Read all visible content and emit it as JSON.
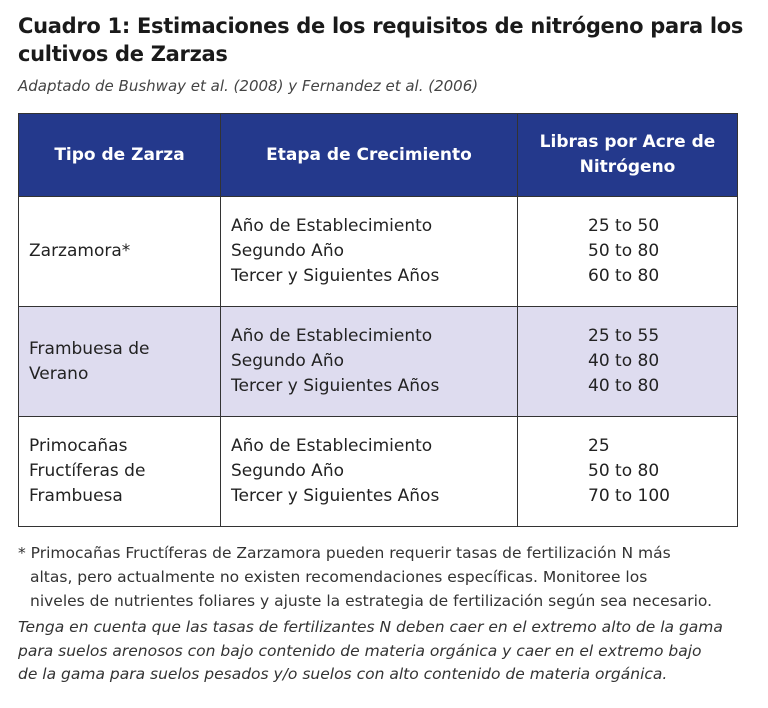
{
  "title": [
    "Cuadro 1: Estimaciones de los requisitos de nitrógeno para los",
    "cultivos de Zarzas"
  ],
  "subtitle": "Adaptado de Bushway et al. (2008) y Fernandez et al. (2006)",
  "table": {
    "header": [
      [
        "Tipo de Zarza"
      ],
      [
        "Etapa de Crecimiento"
      ],
      [
        "Libras por Acre de",
        "Nitrógeno"
      ]
    ],
    "rows": [
      [
        [
          "Zarzamora*"
        ],
        [
          "Año de Establecimiento",
          "Segundo Año",
          "Tercer y Siguientes Años"
        ],
        [
          "25 to 50",
          "50 to 80",
          "60 to 80"
        ]
      ],
      [
        [
          "Frambuesa de",
          "Verano"
        ],
        [
          "Año de Establecimiento",
          "Segundo Año",
          "Tercer y Siguientes Años"
        ],
        [
          "25 to 55",
          "40 to 80",
          "40 to 80"
        ]
      ],
      [
        [
          "Primocañas",
          "Fructíferas de",
          "Frambuesa"
        ],
        [
          "Año de Establecimiento",
          "Segundo Año",
          "Tercer y Siguientes Años"
        ],
        [
          "25",
          "50 to 80",
          "70 to 100"
        ]
      ]
    ]
  },
  "footnote": [
    "* Primocañas Fructíferas de Zarzamora pueden requerir tasas de fertilización N más",
    "altas, pero actualmente no existen recomendaciones específicas. Monitoree los",
    "niveles de nutrientes foliares y ajuste la estrategia de fertilización según sea necesario."
  ],
  "note": [
    "Tenga en cuenta que las tasas de fertilizantes N deben caer en el extremo alto de la gama",
    "para suelos arenosos con bajo contenido de materia orgánica y caer en el extremo bajo",
    "de la gama para suelos pesados y/o suelos con alto contenido de materia orgánica."
  ]
}
